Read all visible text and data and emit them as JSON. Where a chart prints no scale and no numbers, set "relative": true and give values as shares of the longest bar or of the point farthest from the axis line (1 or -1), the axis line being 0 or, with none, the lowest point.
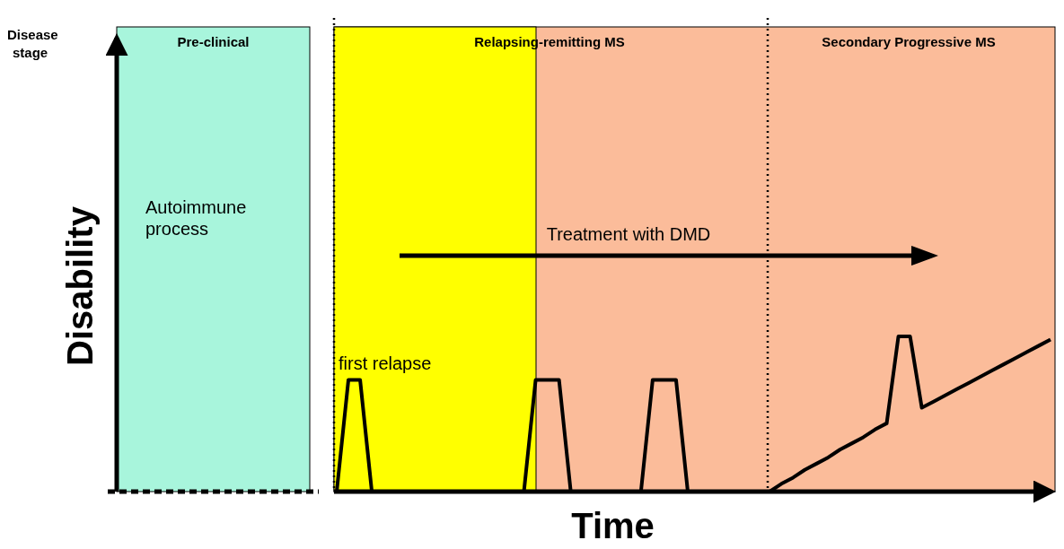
{
  "chart_data": {
    "type": "line",
    "relative": true,
    "xlabel": "Time",
    "line_style": "solid",
    "categories": [
      null,
      null,
      null,
      null,
      null,
      null,
      null,
      null,
      null,
      null,
      null,
      null,
      null,
      null,
      null,
      null,
      null,
      null,
      null,
      null,
      null,
      null,
      null,
      null,
      null,
      null,
      null,
      null,
      null,
      null,
      null,
      null,
      null,
      null,
      null,
      null,
      null,
      null,
      null,
      null,
      null,
      null,
      null,
      null,
      null,
      null,
      null,
      null,
      null,
      null,
      null,
      null,
      null,
      null,
      null,
      null,
      null,
      null,
      null,
      null,
      null,
      null
    ],
    "series": [
      {
        "color": "#000000",
        "values": [
          0,
          0.72,
          0.72,
          0,
          0,
          0,
          0,
          0,
          0,
          0,
          0,
          0,
          0,
          0,
          0,
          0,
          0,
          0.72,
          0.72,
          0.72,
          0,
          0,
          0,
          0,
          0,
          0,
          0,
          0.72,
          0.72,
          0.72,
          0,
          0,
          0,
          0,
          0,
          0,
          0,
          0,
          0.05,
          0.09,
          0.14,
          0.18,
          0.22,
          0.27,
          0.31,
          0.35,
          0.4,
          0.44,
          1,
          1,
          0.54,
          0.58,
          0.62,
          0.66,
          0.7,
          0.74,
          0.78,
          0.82,
          0.86,
          0.9,
          0.94,
          0.98
        ]
      }
    ],
    "annotations": [
      "Disease stage",
      "Pre-clinical",
      "Relapsing-remitting MS",
      "Secondary Progressive MS",
      "Autoimmune process",
      "first relapse",
      "Treatment with DMD",
      "Disability"
    ]
  }
}
